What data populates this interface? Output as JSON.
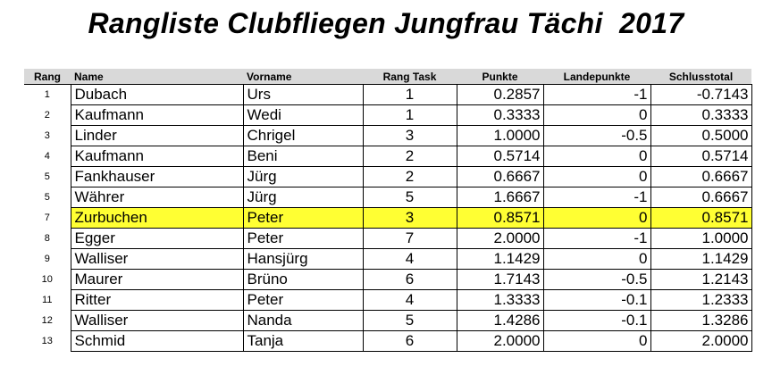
{
  "title": "Rangliste Clubfliegen Jungfrau Tächi  2017",
  "headers": {
    "rang": "Rang",
    "name": "Name",
    "vorname": "Vorname",
    "rang_task": "Rang Task",
    "punkte": "Punkte",
    "landepunkte": "Landepunkte",
    "schlusstotal": "Schlusstotal"
  },
  "rows": [
    {
      "rang": "1",
      "name": "Dubach",
      "vorname": "Urs",
      "rang_task": "1",
      "punkte": "0.2857",
      "landepunkte": "-1",
      "schlusstotal": "-0.7143"
    },
    {
      "rang": "2",
      "name": "Kaufmann",
      "vorname": "Wedi",
      "rang_task": "1",
      "punkte": "0.3333",
      "landepunkte": "0",
      "schlusstotal": "0.3333"
    },
    {
      "rang": "3",
      "name": "Linder",
      "vorname": "Chrigel",
      "rang_task": "3",
      "punkte": "1.0000",
      "landepunkte": "-0.5",
      "schlusstotal": "0.5000"
    },
    {
      "rang": "4",
      "name": "Kaufmann",
      "vorname": "Beni",
      "rang_task": "2",
      "punkte": "0.5714",
      "landepunkte": "0",
      "schlusstotal": "0.5714"
    },
    {
      "rang": "5",
      "name": "Fankhauser",
      "vorname": "Jürg",
      "rang_task": "2",
      "punkte": "0.6667",
      "landepunkte": "0",
      "schlusstotal": "0.6667"
    },
    {
      "rang": "5",
      "name": "Währer",
      "vorname": "Jürg",
      "rang_task": "5",
      "punkte": "1.6667",
      "landepunkte": "-1",
      "schlusstotal": "0.6667"
    },
    {
      "rang": "7",
      "name": "Zurbuchen",
      "vorname": "Peter",
      "rang_task": "3",
      "punkte": "0.8571",
      "landepunkte": "0",
      "schlusstotal": "0.8571"
    },
    {
      "rang": "8",
      "name": "Egger",
      "vorname": "Peter",
      "rang_task": "7",
      "punkte": "2.0000",
      "landepunkte": "-1",
      "schlusstotal": "1.0000"
    },
    {
      "rang": "9",
      "name": "Walliser",
      "vorname": "Hansjürg",
      "rang_task": "4",
      "punkte": "1.1429",
      "landepunkte": "0",
      "schlusstotal": "1.1429"
    },
    {
      "rang": "10",
      "name": "Maurer",
      "vorname": "Brüno",
      "rang_task": "6",
      "punkte": "1.7143",
      "landepunkte": "-0.5",
      "schlusstotal": "1.2143"
    },
    {
      "rang": "11",
      "name": "Ritter",
      "vorname": "Peter",
      "rang_task": "4",
      "punkte": "1.3333",
      "landepunkte": "-0.1",
      "schlusstotal": "1.2333"
    },
    {
      "rang": "12",
      "name": "Walliser",
      "vorname": "Nanda",
      "rang_task": "5",
      "punkte": "1.4286",
      "landepunkte": "-0.1",
      "schlusstotal": "1.3286"
    },
    {
      "rang": "13",
      "name": "Schmid",
      "vorname": "Tanja",
      "rang_task": "6",
      "punkte": "2.0000",
      "landepunkte": "0",
      "schlusstotal": "2.0000"
    }
  ],
  "highlight_rang": "7",
  "highlight_color": "#ffff33"
}
